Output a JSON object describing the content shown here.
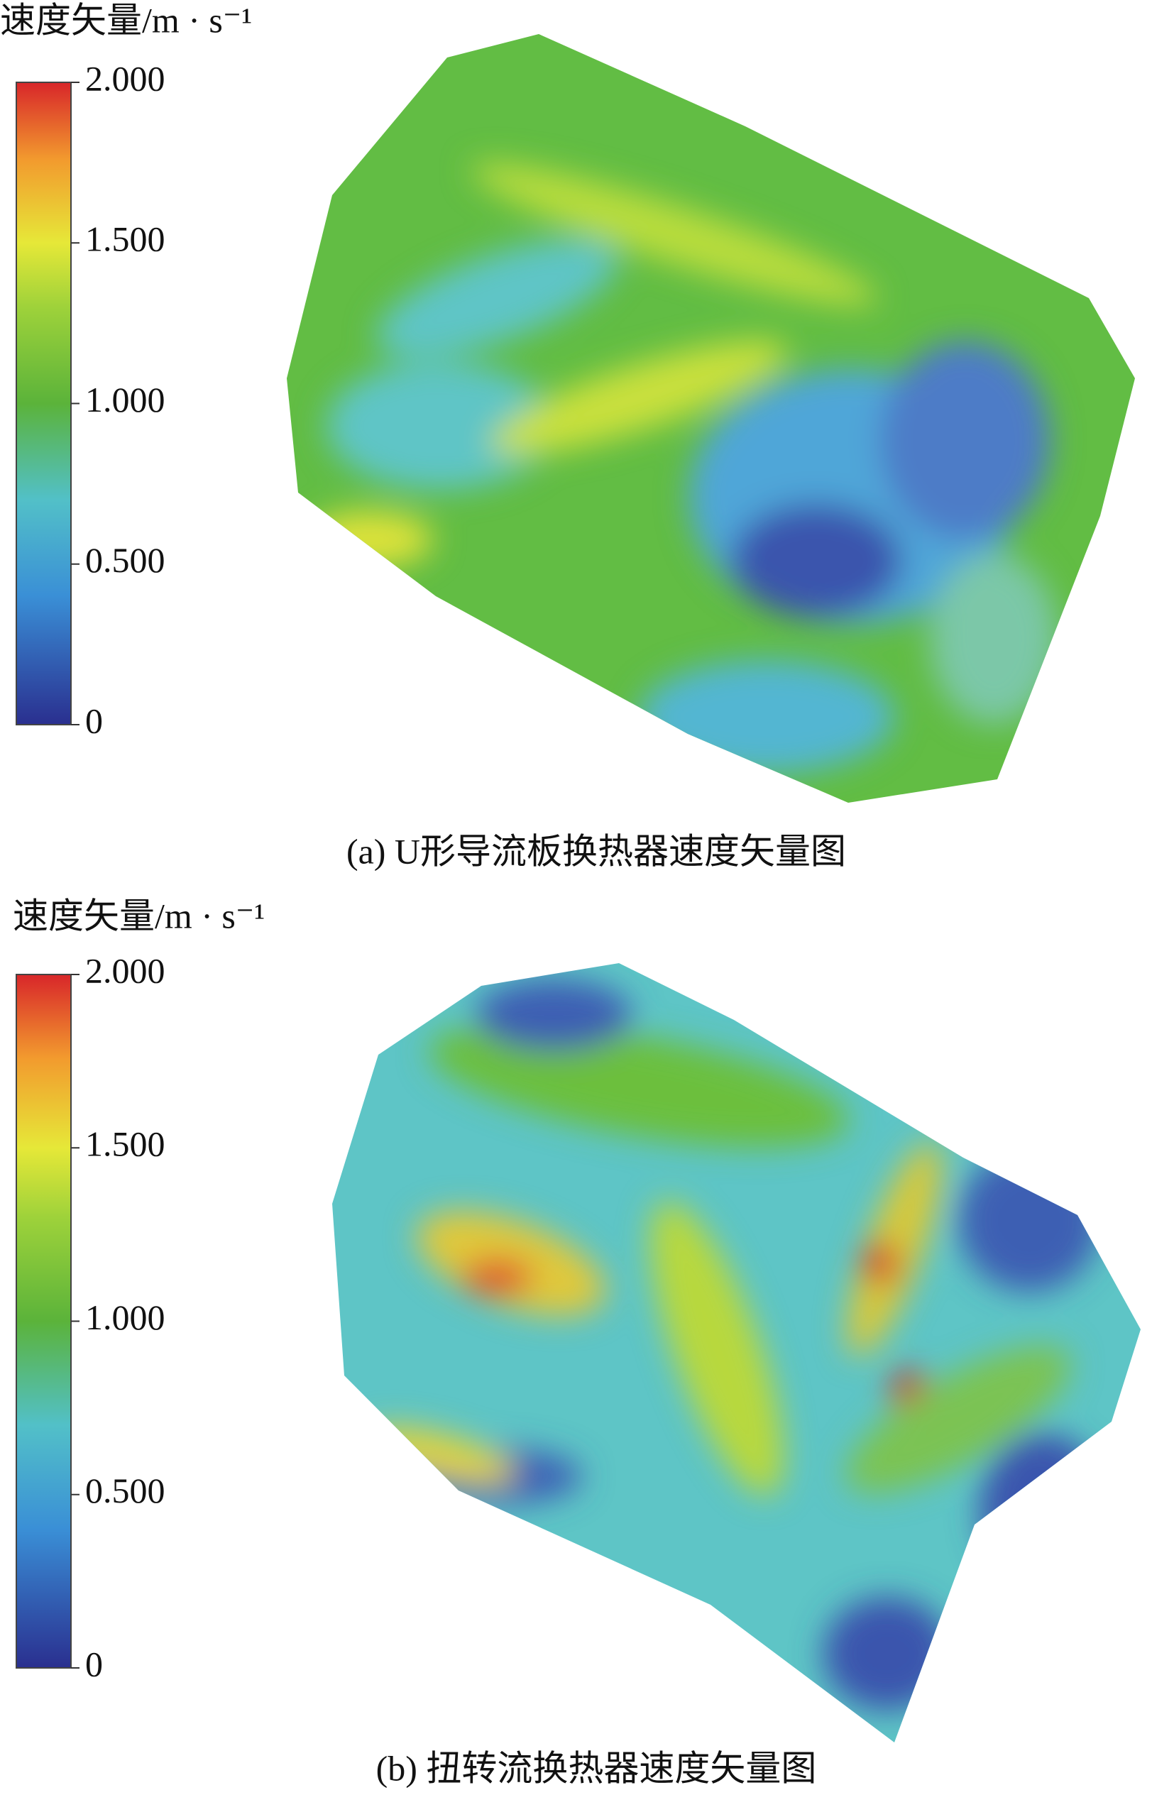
{
  "panels": [
    {
      "colorbar": {
        "title": "速度矢量/m · s⁻¹",
        "range": [
          0,
          2
        ],
        "ticks": [
          {
            "value": 2,
            "label": "2.000"
          },
          {
            "value": 1.5,
            "label": "1.500"
          },
          {
            "value": 1,
            "label": "1.000"
          },
          {
            "value": 0.5,
            "label": "0.500"
          },
          {
            "value": 0,
            "label": "0"
          }
        ]
      },
      "caption": "(a) U形导流板换热器速度矢量图"
    },
    {
      "colorbar": {
        "title": "速度矢量/m · s⁻¹",
        "range": [
          0,
          2
        ],
        "ticks": [
          {
            "value": 2,
            "label": "2.000"
          },
          {
            "value": 1.5,
            "label": "1.500"
          },
          {
            "value": 1,
            "label": "1.000"
          },
          {
            "value": 0.5,
            "label": "0.500"
          },
          {
            "value": 0,
            "label": "0"
          }
        ]
      },
      "caption": "(b) 扭转流换热器速度矢量图"
    }
  ]
}
